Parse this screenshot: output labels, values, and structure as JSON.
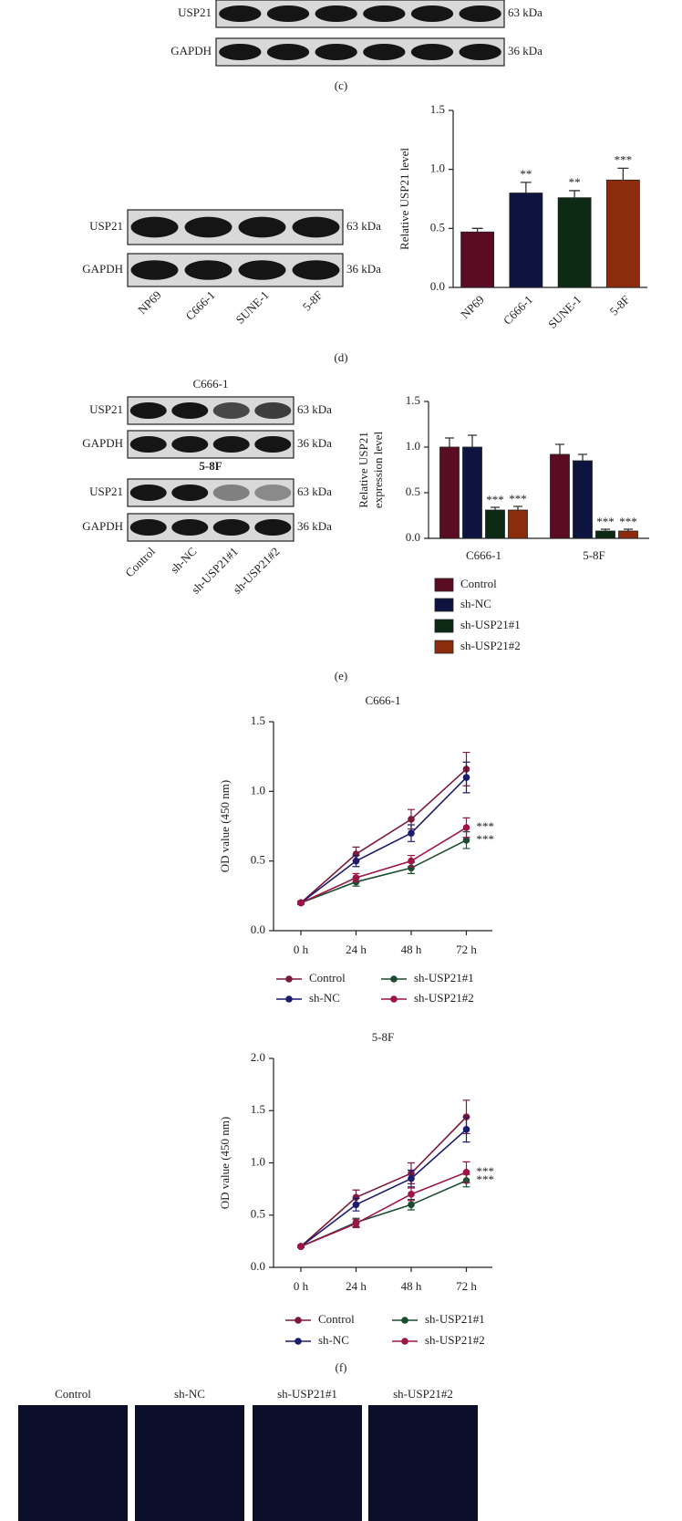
{
  "panel_c": {
    "label": "(c)",
    "rows": [
      {
        "protein": "USP21",
        "size": "63 kDa"
      },
      {
        "protein": "GAPDH",
        "size": "36 kDa"
      }
    ]
  },
  "panel_d": {
    "label": "(d)",
    "blot": {
      "rows": [
        {
          "protein": "USP21",
          "size": "63 kDa"
        },
        {
          "protein": "GAPDH",
          "size": "36 kDa"
        }
      ],
      "lanes": [
        "NP69",
        "C666-1",
        "SUNE-1",
        "5-8F"
      ]
    }
  },
  "panel_e": {
    "label": "(e)",
    "blots": [
      {
        "title": "C666-1",
        "rows": [
          {
            "protein": "USP21",
            "size": "63 kDa"
          },
          {
            "protein": "GAPDH",
            "size": "36 kDa"
          }
        ]
      },
      {
        "title": "5-8F",
        "rows": [
          {
            "protein": "USP21",
            "size": "63 kDa"
          },
          {
            "protein": "GAPDH",
            "size": "36 kDa"
          }
        ]
      }
    ],
    "lanes": [
      "Control",
      "sh-NC",
      "sh-USP21#1",
      "sh-USP21#2"
    ]
  },
  "panel_f": {
    "label": "(f)"
  },
  "panel_g": {
    "columns": [
      "Control",
      "sh-NC",
      "sh-USP21#1",
      "sh-USP21#2"
    ]
  },
  "chart_data": [
    {
      "type": "bar",
      "ylabel": "Relative USP21 level",
      "categories": [
        "NP69",
        "C666-1",
        "SUNE-1",
        "5-8F"
      ],
      "values": [
        0.47,
        0.8,
        0.76,
        0.91
      ],
      "errors": [
        0.03,
        0.09,
        0.06,
        0.1
      ],
      "annotations": [
        null,
        "**",
        "**",
        "***"
      ],
      "colors": [
        "#5a0c22",
        "#0e1440",
        "#0c2a14",
        "#8c2c0c"
      ],
      "ylim": [
        0,
        1.5
      ],
      "yticks": [
        {
          "value": 0,
          "label": "0.0"
        },
        0.5,
        {
          "value": 1,
          "label": "1.0"
        },
        1.5
      ]
    },
    {
      "type": "grouped_bar",
      "ylabel": [
        "Relative USP21",
        "expression level"
      ],
      "categories": [
        "C666-1",
        "5-8F"
      ],
      "series": [
        {
          "name": "Control",
          "color": "#5a0c22",
          "values": [
            1.0,
            0.92
          ],
          "errors": [
            0.1,
            0.11
          ],
          "annotations": [
            null,
            null
          ]
        },
        {
          "name": "sh-NC",
          "color": "#0e1440",
          "values": [
            1.0,
            0.85
          ],
          "errors": [
            0.13,
            0.07
          ],
          "annotations": [
            null,
            null
          ]
        },
        {
          "name": "sh-USP21#1",
          "color": "#0c2a14",
          "values": [
            0.31,
            0.08
          ],
          "errors": [
            0.03,
            0.02
          ],
          "annotations": [
            "***",
            "***"
          ]
        },
        {
          "name": "sh-USP21#2",
          "color": "#8c2c0c",
          "values": [
            0.31,
            0.08
          ],
          "errors": [
            0.04,
            0.02
          ],
          "annotations": [
            "***",
            "***"
          ]
        }
      ],
      "ylim": [
        0,
        1.5
      ],
      "yticks": [
        {
          "value": 0,
          "label": "0.0"
        },
        0.5,
        {
          "value": 1,
          "label": "1.0"
        },
        1.5
      ],
      "legend": "bottom"
    },
    {
      "type": "line",
      "title": "C666-1",
      "ylabel": "OD value (450 nm)",
      "categories": [
        "0 h",
        "24 h",
        "48 h",
        "72 h"
      ],
      "series": [
        {
          "name": "Control",
          "color": "#7b1a3a",
          "values": [
            0.2,
            0.55,
            0.8,
            1.16
          ],
          "errors": [
            0.01,
            0.05,
            0.07,
            0.12
          ],
          "annotations": [
            null,
            null,
            null,
            null
          ]
        },
        {
          "name": "sh-NC",
          "color": "#1c1c6e",
          "values": [
            0.2,
            0.5,
            0.7,
            1.1
          ],
          "errors": [
            0.01,
            0.04,
            0.06,
            0.11
          ],
          "annotations": [
            null,
            null,
            null,
            null
          ]
        },
        {
          "name": "sh-USP21#1",
          "color": "#1b4d2e",
          "values": [
            0.2,
            0.35,
            0.45,
            0.65
          ],
          "errors": [
            0.01,
            0.03,
            0.04,
            0.06
          ],
          "annotations": [
            null,
            null,
            null,
            "***"
          ]
        },
        {
          "name": "sh-USP21#2",
          "color": "#9e1446",
          "values": [
            0.2,
            0.38,
            0.5,
            0.74
          ],
          "errors": [
            0.01,
            0.03,
            0.04,
            0.07
          ],
          "annotations": [
            null,
            null,
            null,
            "***"
          ]
        }
      ],
      "ylim": [
        0,
        1.5
      ],
      "yticks": [
        {
          "value": 0,
          "label": "0.0"
        },
        0.5,
        {
          "value": 1,
          "label": "1.0"
        },
        1.5
      ],
      "legend": "bottom"
    },
    {
      "type": "line",
      "title": "5-8F",
      "ylabel": "OD value (450 nm)",
      "categories": [
        "0 h",
        "24 h",
        "48 h",
        "72 h"
      ],
      "series": [
        {
          "name": "Control",
          "color": "#7b1a3a",
          "values": [
            0.2,
            0.67,
            0.9,
            1.44
          ],
          "errors": [
            0.01,
            0.07,
            0.1,
            0.16
          ],
          "annotations": [
            null,
            null,
            null,
            null
          ]
        },
        {
          "name": "sh-NC",
          "color": "#1c1c6e",
          "values": [
            0.2,
            0.6,
            0.85,
            1.32
          ],
          "errors": [
            0.01,
            0.06,
            0.08,
            0.12
          ],
          "annotations": [
            null,
            null,
            null,
            null
          ]
        },
        {
          "name": "sh-USP21#1",
          "color": "#1b4d2e",
          "values": [
            0.2,
            0.43,
            0.6,
            0.83
          ],
          "errors": [
            0.01,
            0.04,
            0.05,
            0.06
          ],
          "annotations": [
            null,
            null,
            null,
            "***"
          ]
        },
        {
          "name": "sh-USP21#2",
          "color": "#9e1446",
          "values": [
            0.2,
            0.42,
            0.7,
            0.91
          ],
          "errors": [
            0.01,
            0.04,
            0.06,
            0.1
          ],
          "annotations": [
            null,
            null,
            null,
            "***"
          ]
        }
      ],
      "ylim": [
        0,
        2
      ],
      "yticks": [
        {
          "value": 0,
          "label": "0.0"
        },
        0.5,
        {
          "value": 1,
          "label": "1.0"
        },
        1.5,
        {
          "value": 2,
          "label": "2.0"
        }
      ],
      "legend": "bottom"
    }
  ]
}
